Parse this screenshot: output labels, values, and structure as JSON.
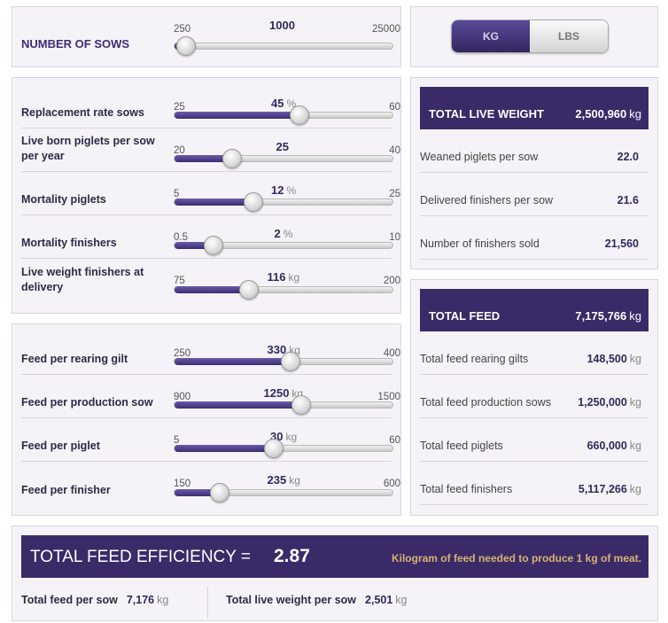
{
  "sows": {
    "label": "NUMBER OF SOWS",
    "min": "250",
    "max": "25000",
    "value": "1000",
    "unit": "",
    "fraction": 0.03
  },
  "unit_toggle": {
    "kg": "KG",
    "lbs": "LBS",
    "selected": "KG"
  },
  "herd_sliders": [
    {
      "label": "Replacement rate sows",
      "min": "25",
      "max": "60",
      "value": "45",
      "unit": "%",
      "fraction": 0.57
    },
    {
      "label": "Live born piglets per sow per year",
      "min": "20",
      "max": "40",
      "value": "25",
      "unit": "",
      "fraction": 0.25
    },
    {
      "label": "Mortality piglets",
      "min": "5",
      "max": "25",
      "value": "12",
      "unit": "%",
      "fraction": 0.35
    },
    {
      "label": "Mortality finishers",
      "min": "0.5",
      "max": "10",
      "value": "2",
      "unit": "%",
      "fraction": 0.16
    },
    {
      "label": "Live weight finishers at delivery",
      "min": "75",
      "max": "200",
      "value": "116",
      "unit": "kg",
      "fraction": 0.33
    }
  ],
  "feed_sliders": [
    {
      "label": "Feed per rearing gilt",
      "min": "250",
      "max": "400",
      "value": "330",
      "unit": "kg",
      "fraction": 0.53
    },
    {
      "label": "Feed per production sow",
      "min": "900",
      "max": "1500",
      "value": "1250",
      "unit": "kg",
      "fraction": 0.58
    },
    {
      "label": "Feed per piglet",
      "min": "5",
      "max": "60",
      "value": "30",
      "unit": "kg",
      "fraction": 0.45
    },
    {
      "label": "Feed per finisher",
      "min": "150",
      "max": "600",
      "value": "235",
      "unit": "kg",
      "fraction": 0.19
    }
  ],
  "live_weight": {
    "title": "TOTAL LIVE WEIGHT",
    "value": "2,500,960",
    "unit": "kg",
    "rows": [
      {
        "label": "Weaned piglets per sow",
        "value": "22.0",
        "unit": ""
      },
      {
        "label": "Delivered finishers per sow",
        "value": "21.6",
        "unit": ""
      },
      {
        "label": "Number of finishers sold",
        "value": "21,560",
        "unit": ""
      }
    ]
  },
  "total_feed": {
    "title": "TOTAL FEED",
    "value": "7,175,766",
    "unit": "kg",
    "rows": [
      {
        "label": "Total feed rearing gilts",
        "value": "148,500",
        "unit": "kg"
      },
      {
        "label": "Total feed production sows",
        "value": "1,250,000",
        "unit": "kg"
      },
      {
        "label": "Total feed piglets",
        "value": "660,000",
        "unit": "kg"
      },
      {
        "label": "Total feed finishers",
        "value": "5,117,266",
        "unit": "kg"
      }
    ]
  },
  "efficiency": {
    "label": "TOTAL FEED EFFICIENCY =",
    "value": "2.87",
    "note": "Kilogram of feed needed to produce 1 kg of meat.",
    "per_sow_feed_label": "Total feed per sow",
    "per_sow_feed_value": "7,176",
    "per_sow_feed_unit": "kg",
    "per_sow_weight_label": "Total live weight per sow",
    "per_sow_weight_value": "2,501",
    "per_sow_weight_unit": "kg"
  },
  "colors": {
    "accent": "#3a2b68",
    "note": "#d6b273",
    "panel": "#f6f3f8"
  }
}
